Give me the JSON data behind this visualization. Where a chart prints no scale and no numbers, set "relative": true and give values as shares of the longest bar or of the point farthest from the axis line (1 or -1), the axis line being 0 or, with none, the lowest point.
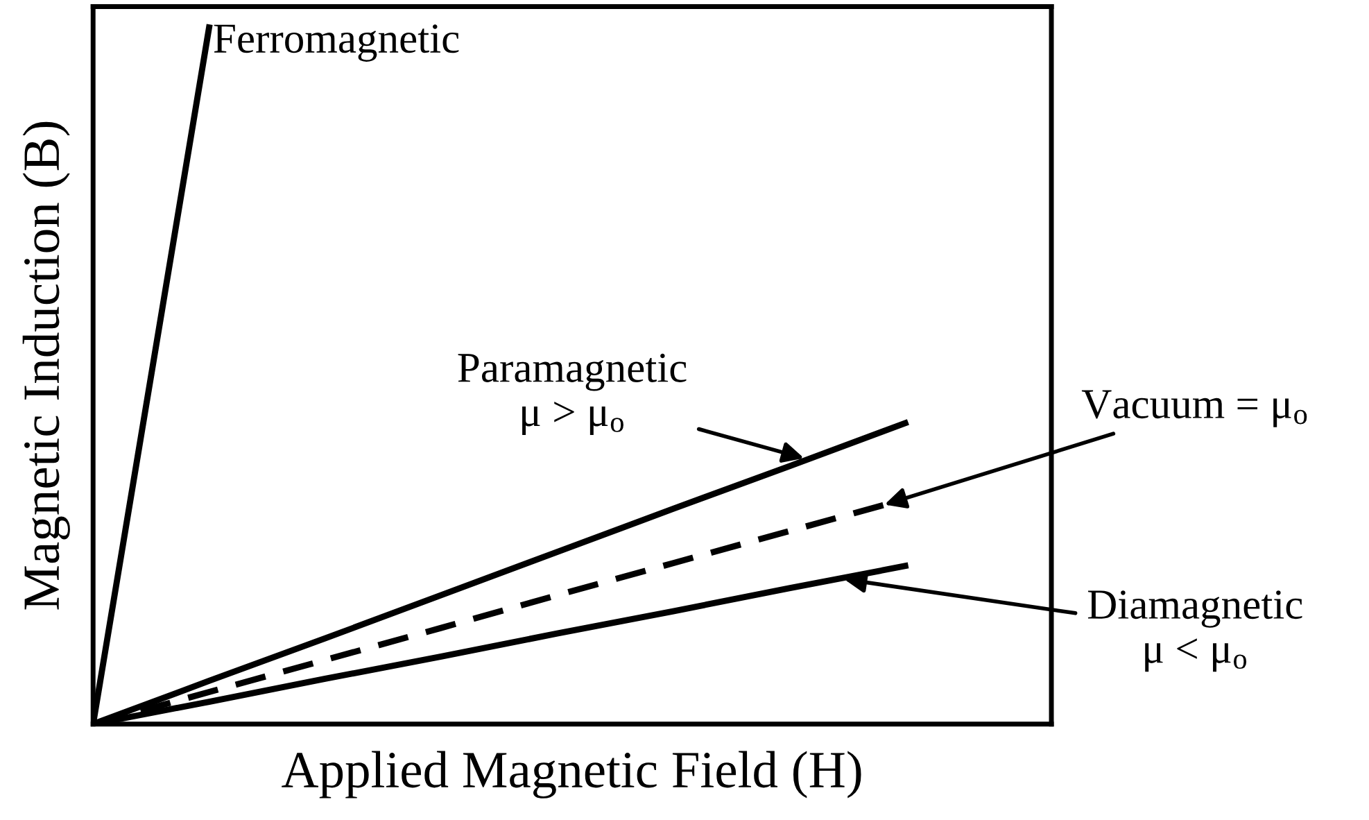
{
  "chart_data": {
    "type": "line",
    "relative": true,
    "xlabel": "Applied Magnetic Field (H)",
    "ylabel": "Magnetic Induction (B)",
    "categories": [
      null,
      null,
      null,
      null,
      null,
      null,
      null,
      null
    ],
    "tick_labels": false,
    "marker": "none",
    "series": [
      {
        "name": "Ferromagnetic",
        "color": "#000000",
        "line_style": "solid",
        "values": [
          0,
          1,
          null,
          null,
          null,
          null,
          null,
          null
        ]
      },
      {
        "name": "Paramagnetic\nμ > μ$_{o}$",
        "color": "#000000",
        "line_style": "solid",
        "values": [
          0,
          0.062,
          0.123,
          0.185,
          0.247,
          0.309,
          0.37,
          0.432
        ]
      },
      {
        "name": "Vacuum = μ$_{o}$",
        "color": "#000000",
        "line_style": "dashed",
        "values": [
          0,
          0.046,
          0.092,
          0.138,
          0.185,
          0.231,
          0.277,
          0.323
        ]
      },
      {
        "name": "Diamagnetic\nμ < μ$_{o}$",
        "color": "#000000",
        "line_style": "solid",
        "values": [
          0,
          0.032,
          0.065,
          0.097,
          0.13,
          0.162,
          0.195,
          0.227
        ]
      }
    ]
  }
}
